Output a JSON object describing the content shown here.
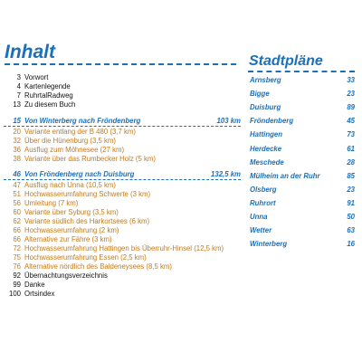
{
  "toc": {
    "title": "Inhalt",
    "entries": [
      {
        "page": "3",
        "text": "Vorwort",
        "km": "",
        "style": "blk"
      },
      {
        "page": "4",
        "text": "Kartenlegende",
        "km": "",
        "style": "blk"
      },
      {
        "page": "7",
        "text": "RuhrtalRadweg",
        "km": "",
        "style": "blk"
      },
      {
        "page": "13",
        "text": "Zu diesem Buch",
        "km": "",
        "style": "blk"
      },
      {
        "page": "15",
        "text": "Von Winterberg nach Fröndenberg",
        "km": "103 km",
        "style": "sec"
      },
      {
        "page": "20",
        "text": "Variante entlang der B 480 (3,7 km)",
        "km": "",
        "style": "org"
      },
      {
        "page": "32",
        "text": "Über die Hünenburg (3,5 km)",
        "km": "",
        "style": "org"
      },
      {
        "page": "36",
        "text": "Ausflug zum Möhnesee (27 km)",
        "km": "",
        "style": "org"
      },
      {
        "page": "38",
        "text": "Variante über das Rumbecker Holz (5 km)",
        "km": "",
        "style": "org"
      },
      {
        "page": "46",
        "text": "Von Fröndenberg nach Duisburg",
        "km": "132,5 km",
        "style": "sec"
      },
      {
        "page": "47",
        "text": "Ausflug nach Unna (10,5 km)",
        "km": "",
        "style": "org"
      },
      {
        "page": "51",
        "text": "Hochwasserumfahrung Schwerte (3 km)",
        "km": "",
        "style": "org"
      },
      {
        "page": "56",
        "text": "Umleitung (7 km)",
        "km": "",
        "style": "org"
      },
      {
        "page": "60",
        "text": "Variante über Syburg (3,5 km)",
        "km": "",
        "style": "org"
      },
      {
        "page": "62",
        "text": "Variante südlich des Harkortsees (6 km)",
        "km": "",
        "style": "org"
      },
      {
        "page": "66",
        "text": "Hochwasserumfahrung (2 km)",
        "km": "",
        "style": "org"
      },
      {
        "page": "66",
        "text": "Alternative zur Fähre (3 km)",
        "km": "",
        "style": "org"
      },
      {
        "page": "72",
        "text": "Hochwasserumfahrung Hattingen bis Überruhr-Hinsel (12,5 km)",
        "km": "",
        "style": "org"
      },
      {
        "page": "75",
        "text": "Hochwasserumfahrung Essen (2,5 km)",
        "km": "",
        "style": "org"
      },
      {
        "page": "76",
        "text": "Alternative nördlich des Baldeneysees (8,5 km)",
        "km": "",
        "style": "org"
      },
      {
        "page": "92",
        "text": "Übernachtungsverzeichnis",
        "km": "",
        "style": "blk"
      },
      {
        "page": "99",
        "text": "Danke",
        "km": "",
        "style": "blk"
      },
      {
        "page": "100",
        "text": "Ortsindex",
        "km": "",
        "style": "blk"
      }
    ]
  },
  "stadtplaene": {
    "title": "Stadtpläne",
    "entries": [
      {
        "name": "Arnsberg",
        "page": "33"
      },
      {
        "name": "Bigge",
        "page": "23"
      },
      {
        "name": "Duisburg",
        "page": "89"
      },
      {
        "name": "Fröndenberg",
        "page": "45"
      },
      {
        "name": "Hattingen",
        "page": "73"
      },
      {
        "name": "Herdecke",
        "page": "61"
      },
      {
        "name": "Meschede",
        "page": "28"
      },
      {
        "name": "Mülheim an der Ruhr",
        "page": "85"
      },
      {
        "name": "Olsberg",
        "page": "23"
      },
      {
        "name": "Ruhrort",
        "page": "91"
      },
      {
        "name": "Unna",
        "page": "50"
      },
      {
        "name": "Wetter",
        "page": "63"
      },
      {
        "name": "Winterberg",
        "page": "16"
      }
    ]
  },
  "colors": {
    "heading": "#1d6fb8",
    "variant": "#c47a1a",
    "text": "#111111"
  }
}
